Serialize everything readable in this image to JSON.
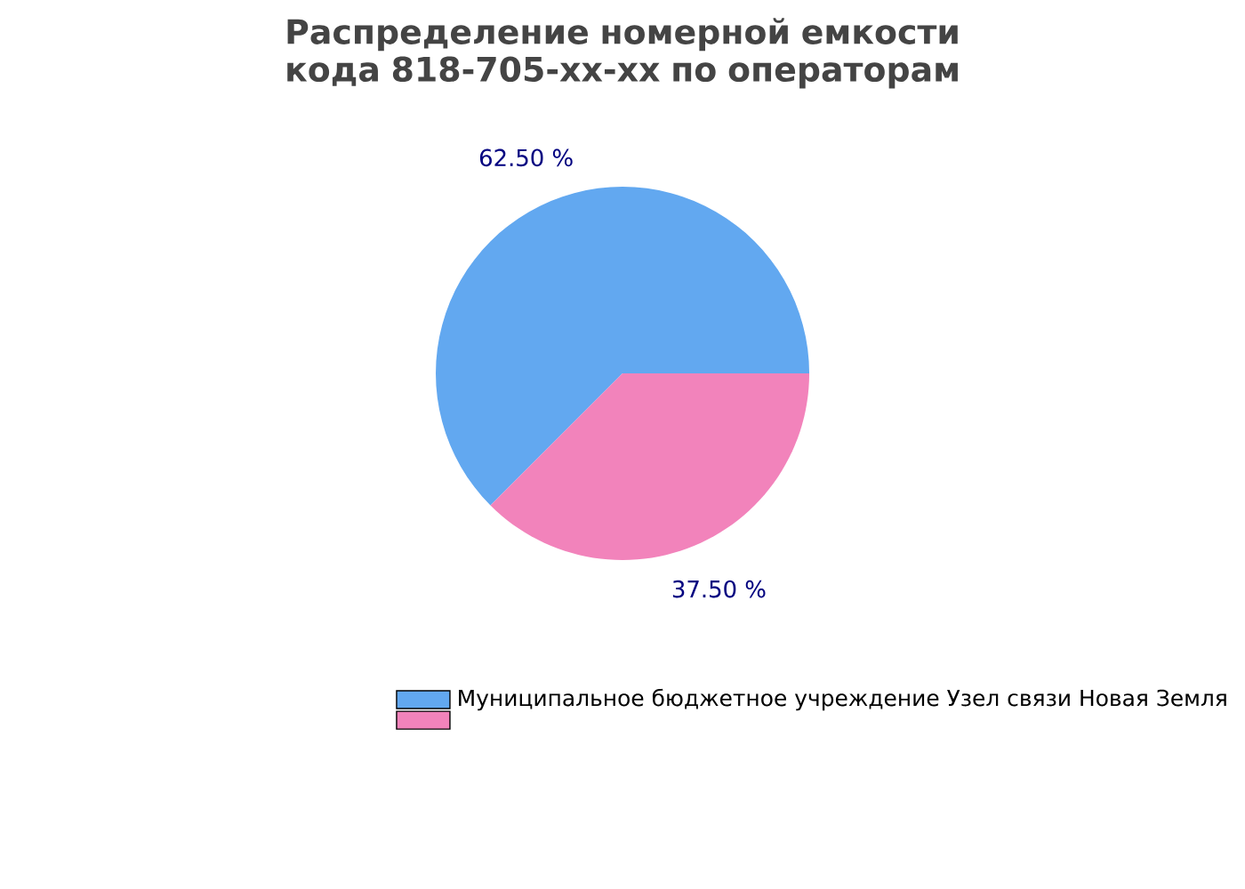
{
  "chart_data": {
    "type": "pie",
    "title": "Распределение номерной емкости кода 818-705-xx-xx по операторам",
    "categories": [
      "Муниципальное бюджетное учреждение Узел связи Новая Земля",
      null
    ],
    "values": [
      62.5,
      37.5
    ],
    "value_labels": [
      "62.50 %",
      "37.50 %"
    ],
    "colors": [
      "#62a8f0",
      "#f283bb"
    ],
    "legend": "bottom"
  }
}
